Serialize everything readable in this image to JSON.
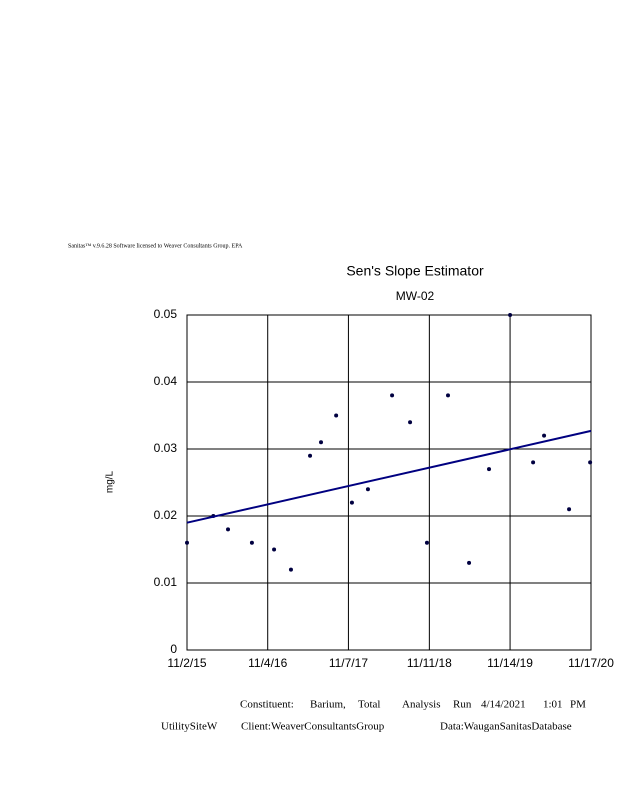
{
  "header": {
    "notice": "Sanitas™ v.9.6.28 Software licensed to Weaver Consultants Group. EPA"
  },
  "chart_data": {
    "type": "scatter",
    "title": "Sen's Slope Estimator",
    "subtitle": "MW-02",
    "y_label": "mg/L",
    "x": [
      "11/2/15",
      "3/1/16",
      "5/7/16",
      "8/24/16",
      "12/3/16",
      "2/18/17",
      "5/16/17",
      "7/5/17",
      "9/12/17",
      "11/23/17",
      "2/4/18",
      "5/25/18",
      "8/15/18",
      "10/31/18",
      "2/4/19",
      "5/11/19",
      "8/10/19",
      "11/14/19",
      "2/27/20",
      "4/17/20",
      "8/9/20",
      "11/13/20"
    ],
    "values": [
      0.016,
      0.02,
      0.018,
      0.016,
      0.015,
      0.012,
      0.029,
      0.031,
      0.035,
      0.022,
      0.024,
      0.038,
      0.034,
      0.016,
      0.038,
      0.013,
      0.027,
      0.05,
      0.028,
      0.032,
      0.021,
      0.028
    ],
    "color": "#000040",
    "trend": {
      "x": [
        "11/2/15",
        "11/17/20"
      ],
      "values": [
        0.019,
        0.0327
      ],
      "color": "#000080"
    },
    "xlim": [
      "11/2/15",
      "11/17/20"
    ],
    "xticks": [
      "11/2/15",
      "11/4/16",
      "11/7/17",
      "11/11/18",
      "11/14/19",
      "11/17/20"
    ],
    "ylim": [
      0,
      0.05
    ],
    "yticks": [
      0,
      0.01,
      0.02,
      0.03,
      0.04,
      0.05
    ],
    "grid": true
  },
  "footer": {
    "line1": [
      "Constituent:",
      "Barium,",
      "Total",
      "Analysis",
      "Run",
      "4/14/2021",
      "1:01",
      "PM"
    ],
    "line2": [
      "UtilitySiteW",
      "Client:WeaverConsultantsGroup",
      "Data:WauganSanitasDatabase"
    ]
  }
}
